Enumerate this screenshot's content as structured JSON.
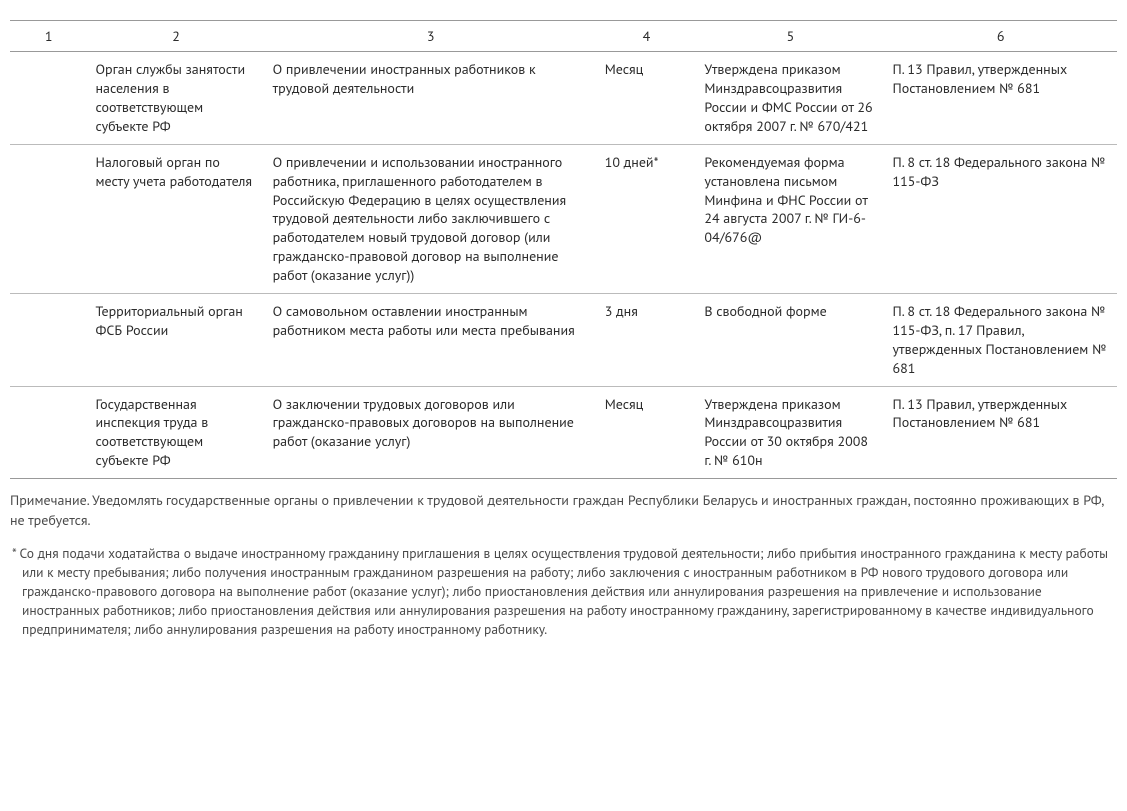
{
  "table": {
    "headers": [
      "1",
      "2",
      "3",
      "4",
      "5",
      "6"
    ],
    "rows": [
      {
        "c1": "",
        "c2": "Орган службы занятости населения в соответствующем субъекте РФ",
        "c3": "О привлечении иностранных работников к трудовой деятельности",
        "c4": "Месяц",
        "c5": "Утверждена приказом Минздравсоцразвития России и ФМС России от 26 октября 2007 г. № 670/421",
        "c6": "П. 13 Правил, утвержденных Постановлением № 681"
      },
      {
        "c1": "",
        "c2": "Налоговый орган по месту учета работодателя",
        "c3": "О привлечении и использовании иностранного работника, приглашенного работодателем в Российскую Федерацию в целях осуществления трудовой деятельности либо заключившего с работодателем новый трудовой договор (или гражданско-правовой договор на выполнение работ (оказание услуг))",
        "c4": "10 дней*",
        "c5": "Рекомендуемая форма установлена письмом Минфина и ФНС России от 24 августа 2007 г. № ГИ-6-04/676@",
        "c6": "П. 8 ст. 18 Федерального закона № 115-ФЗ"
      },
      {
        "c1": "",
        "c2": "Территориальный орган ФСБ России",
        "c3": "О самовольном оставлении иностранным работником места работы или места пребывания",
        "c4": "3 дня",
        "c5": "В свободной форме",
        "c6": "П. 8 ст. 18 Федерального закона № 115-ФЗ, п. 17 Правил, утвержденных Постановлением № 681"
      },
      {
        "c1": "",
        "c2": "Государственная инспекция труда в соответствующем субъекте РФ",
        "c3": "О заключении трудовых договоров или гражданско-правовых договоров на выполнение работ (оказание услуг)",
        "c4": "Месяц",
        "c5": "Утверждена приказом Минздравсоцразвития России от 30 октября 2008 г. № 610н",
        "c6": "П. 13 Правил, утвержденных Постановлением № 681"
      }
    ]
  },
  "note": "Примечание. Уведомлять государственные органы о привлечении к трудовой деятельности граждан Республики Беларусь и иностранных граждан, постоянно проживающих в РФ, не требуется.",
  "footnote": "* Со дня подачи ходатайства о выдаче иностранному гражданину приглашения в целях осуществления трудовой деятельности; либо прибытия иностранного гражданина к месту работы или к месту пребывания; либо получения иностранным гражданином разрешения на работу; либо заключения с иностранным работником в РФ нового трудового договора или гражданско-правового договора на выполнение работ (оказание услуг); либо приостановления действия или аннулирования разрешения на привлечение и использование иностранных работников; либо приостановления действия или аннулирования разрешения на работу иностранному гражданину, зарегистрированному в качестве индивидуального предпринимателя; либо аннулирования разрешения на работу иностранному работнику."
}
